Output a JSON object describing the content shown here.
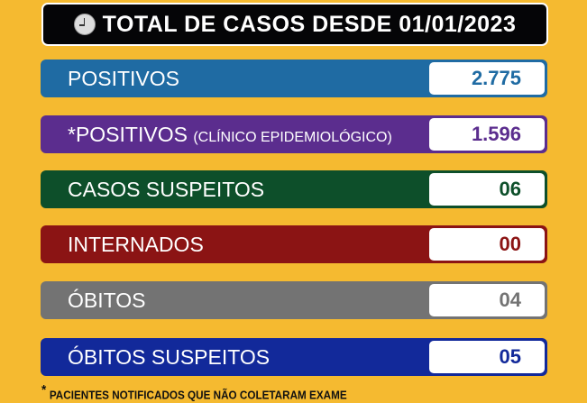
{
  "header": {
    "title": "TOTAL DE CASOS DESDE 01/01/2023",
    "icon": "clock-icon"
  },
  "rows": [
    {
      "label": "POSITIVOS",
      "sub": "",
      "value": "2.775",
      "color": "#1f6ba3"
    },
    {
      "label": "*POSITIVOS",
      "sub": "(CLÍNICO EPIDEMIOLÓGICO)",
      "value": "1.596",
      "color": "#5b2d8e"
    },
    {
      "label": "CASOS SUSPEITOS",
      "sub": "",
      "value": "06",
      "color": "#0d4f2a"
    },
    {
      "label": "INTERNADOS",
      "sub": "",
      "value": "00",
      "color": "#8b1414"
    },
    {
      "label": "ÓBITOS",
      "sub": "",
      "value": "04",
      "color": "#737373"
    },
    {
      "label": "ÓBITOS SUSPEITOS",
      "sub": "",
      "value": "05",
      "color": "#12299a"
    }
  ],
  "footnote": {
    "mark": "*",
    "text": "PACIENTES NOTIFICADOS QUE NÃO COLETARAM EXAME"
  }
}
